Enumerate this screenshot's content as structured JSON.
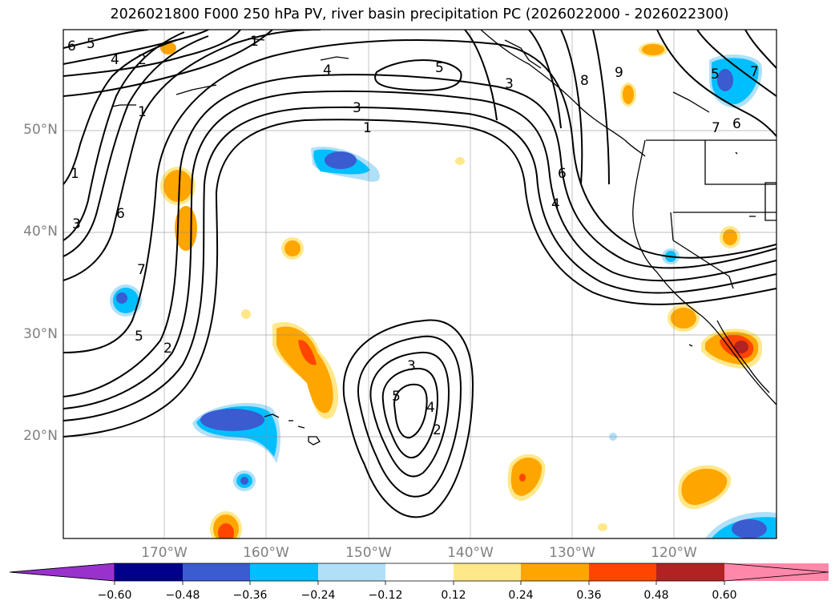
{
  "title": "2026021800 F000 250 hPa PV, river basin precipitation PC (2026022000 - 2026022300)",
  "map": {
    "projection": "cylindrical",
    "lon_range": [
      -180,
      -110
    ],
    "lat_range": [
      10,
      60
    ],
    "lat_labels": [
      "20°N",
      "30°N",
      "40°N",
      "50°N"
    ],
    "lon_labels": [
      "170°W",
      "160°W",
      "150°W",
      "140°W",
      "130°W",
      "120°W"
    ],
    "gridlines": true,
    "contour_labels": [
      "6",
      "5",
      "4",
      "2",
      "1",
      "1",
      "4",
      "5",
      "3",
      "3",
      "1",
      "8",
      "9",
      "5",
      "7",
      "6",
      "7",
      "6",
      "4",
      "1",
      "6",
      "3",
      "7",
      "5",
      "2",
      "3",
      "5",
      "4",
      "2"
    ]
  },
  "colorbar": {
    "ticks": [
      "−0.60",
      "−0.48",
      "−0.36",
      "−0.24",
      "−0.12",
      "0.12",
      "0.24",
      "0.36",
      "0.48",
      "0.60"
    ],
    "colors": [
      "#9932cc",
      "#00008b",
      "#3b5bd0",
      "#00bfff",
      "#b0e0f8",
      "#ffffff",
      "#ffe88a",
      "#ffa500",
      "#ff4500",
      "#b22222",
      "#ff88aa"
    ]
  }
}
